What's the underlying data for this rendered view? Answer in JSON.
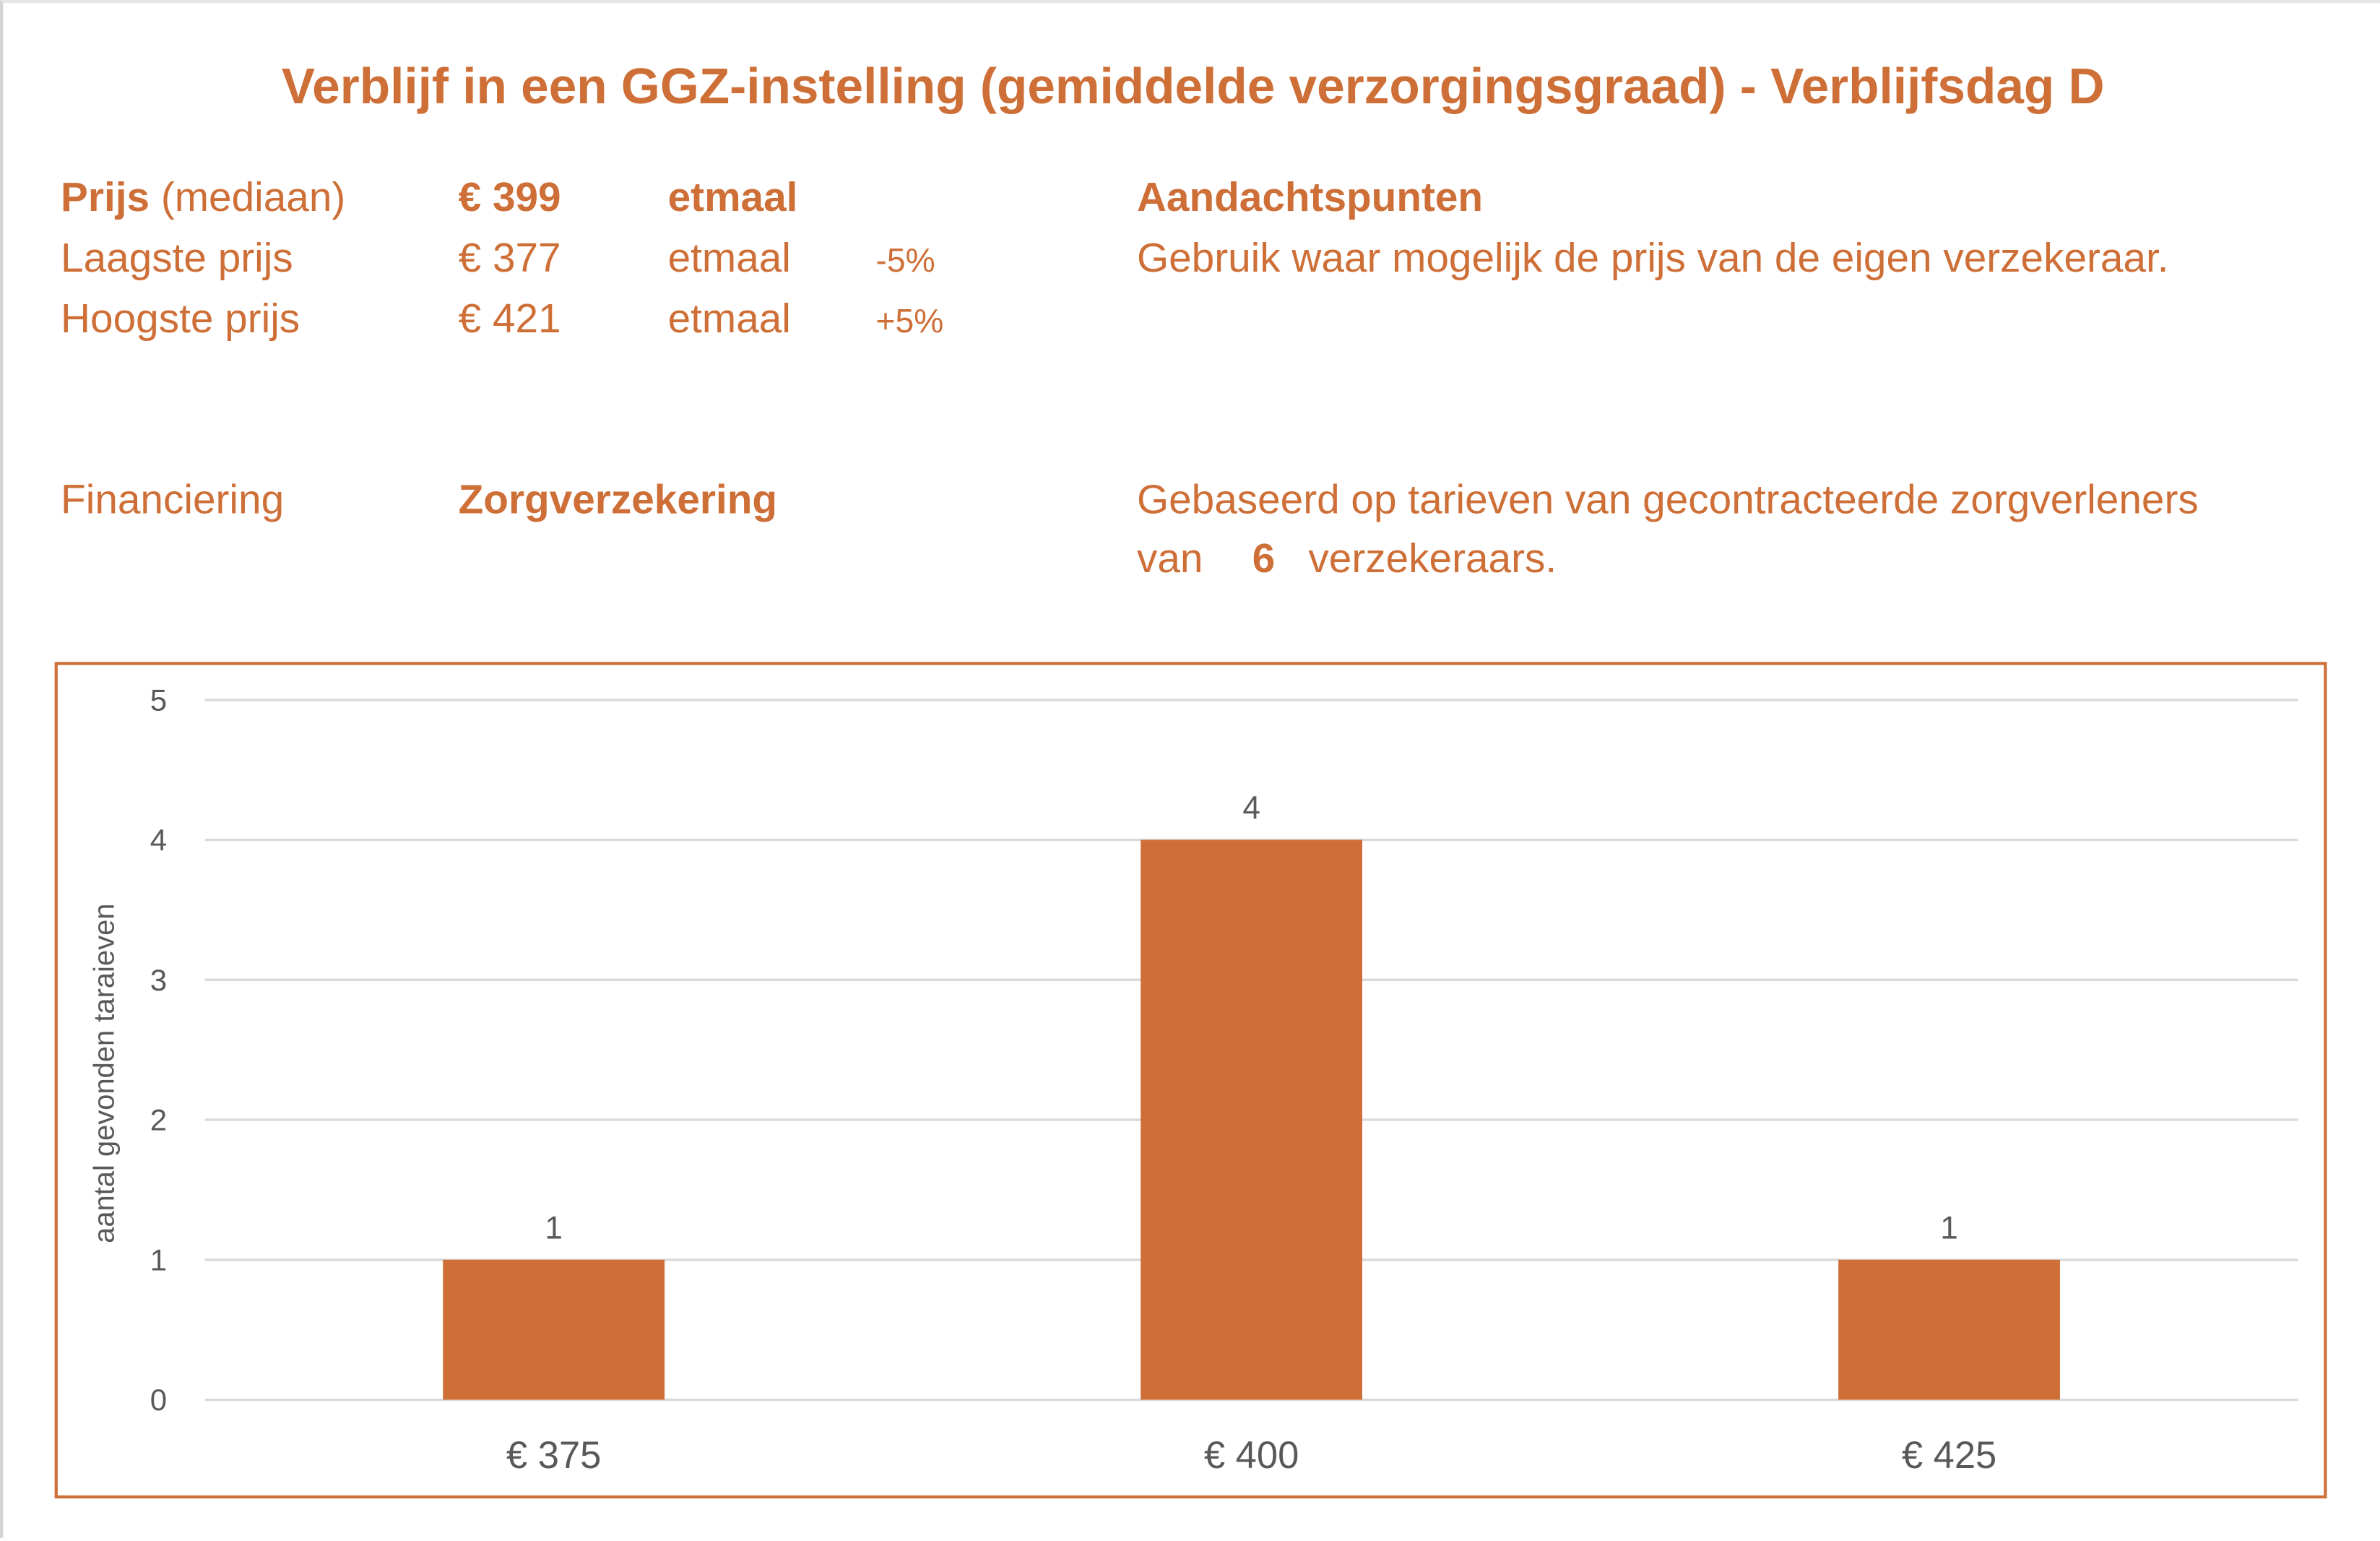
{
  "title": "Verblijf in een GGZ-instelling (gemiddelde verzorgingsgraad) - Verblijfsdag D",
  "price": {
    "median_label_bold": "Prijs",
    "median_label_rest": "(mediaan)",
    "median_value": "€ 399",
    "median_unit": "etmaal",
    "low_label": "Laagste prijs",
    "low_value": "€ 377",
    "low_unit": "etmaal",
    "low_pct": "-5%",
    "high_label": "Hoogste prijs",
    "high_value": "€ 421",
    "high_unit": "etmaal",
    "high_pct": "+5%"
  },
  "attention": {
    "heading": "Aandachtspunten",
    "text": "Gebruik waar mogelijk de prijs van de eigen verzekeraar."
  },
  "financing": {
    "label": "Financiering",
    "value": "Zorgverzekering",
    "basis_line1": "Gebaseerd op tarieven van gecontracteerde zorgverleners",
    "basis_prefix": "van",
    "basis_count": "6",
    "basis_suffix": "verzekeraars."
  },
  "colors": {
    "accent": "#CE6F37",
    "grid": "#D9D9D9",
    "text": "#595959"
  },
  "chart_data": {
    "type": "bar",
    "title": "",
    "xlabel": "",
    "ylabel": "aantal gevonden taraieven",
    "categories": [
      "€ 375",
      "€ 400",
      "€ 425"
    ],
    "values": [
      1,
      4,
      1
    ],
    "data_labels": [
      "1",
      "4",
      "1"
    ],
    "ylim": [
      0,
      5
    ],
    "yticks": [
      "0",
      "1",
      "2",
      "3",
      "4",
      "5"
    ],
    "grid": true,
    "legend": "none"
  }
}
